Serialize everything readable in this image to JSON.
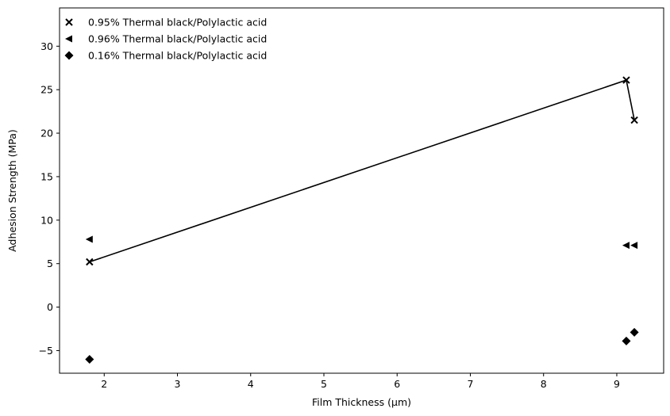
{
  "chart_data": {
    "type": "scatter",
    "title": "",
    "xlabel": "Film Thickness (µm)",
    "ylabel": "Adhesion Strength (MPa)",
    "xlim": [
      1.39,
      9.64
    ],
    "ylim": [
      -7.6,
      34.4
    ],
    "xticks": [
      2,
      3,
      4,
      5,
      6,
      7,
      8,
      9
    ],
    "yticks": [
      -5,
      0,
      5,
      10,
      15,
      20,
      25,
      30
    ],
    "grid": false,
    "legend_position": "top-left",
    "series": [
      {
        "name": "0.95% Thermal black/Polylactic acid",
        "marker": "x",
        "color": "#000000",
        "connected": true,
        "x": [
          1.8,
          9.13,
          9.24
        ],
        "y": [
          5.2,
          26.1,
          21.5
        ]
      },
      {
        "name": "0.96% Thermal black/Polylactic acid",
        "marker": "triangle-left",
        "color": "#000000",
        "connected": false,
        "x": [
          1.8,
          9.13,
          9.24
        ],
        "y": [
          7.8,
          7.1,
          7.1
        ]
      },
      {
        "name": "0.16% Thermal black/Polylactic acid",
        "marker": "diamond",
        "color": "#000000",
        "connected": false,
        "x": [
          1.8,
          9.13,
          9.24
        ],
        "y": [
          -6.0,
          -3.9,
          -2.9
        ]
      }
    ]
  }
}
